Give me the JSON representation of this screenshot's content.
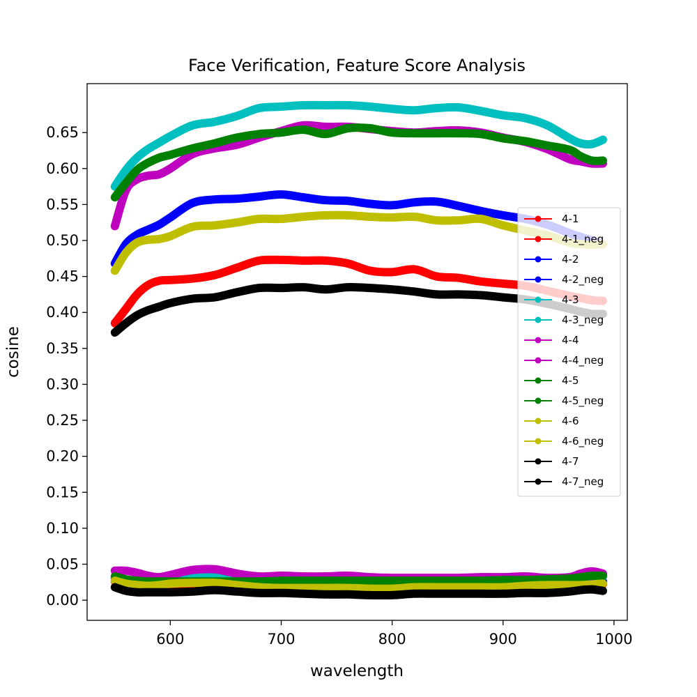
{
  "chart_data": {
    "type": "line",
    "title": "Face Verification, Feature Score Analysis",
    "xlabel": "wavelength",
    "ylabel": "cosine",
    "xlim": [
      525,
      1012
    ],
    "ylim": [
      -0.028,
      0.718
    ],
    "xticks": [
      600,
      700,
      800,
      900,
      1000
    ],
    "xtick_labels": [
      "600",
      "700",
      "800",
      "900",
      "1000"
    ],
    "yticks": [
      0.0,
      0.05,
      0.1,
      0.15,
      0.2,
      0.25,
      0.3,
      0.35,
      0.4,
      0.45,
      0.5,
      0.55,
      0.6,
      0.65
    ],
    "ytick_labels": [
      "0.00",
      "0.05",
      "0.10",
      "0.15",
      "0.20",
      "0.25",
      "0.30",
      "0.35",
      "0.40",
      "0.45",
      "0.50",
      "0.55",
      "0.60",
      "0.65"
    ],
    "grid": false,
    "legend": "center-right",
    "x": [
      550,
      560,
      570,
      580,
      590,
      600,
      620,
      640,
      660,
      680,
      700,
      720,
      740,
      760,
      780,
      800,
      820,
      840,
      860,
      880,
      900,
      920,
      940,
      960,
      970,
      980,
      990
    ],
    "series": [
      {
        "name": "4-1",
        "color": "#ff0000",
        "values": [
          0.385,
          0.405,
          0.425,
          0.438,
          0.444,
          0.445,
          0.447,
          0.452,
          0.462,
          0.472,
          0.473,
          0.472,
          0.472,
          0.468,
          0.458,
          0.456,
          0.46,
          0.45,
          0.448,
          0.443,
          0.44,
          0.437,
          0.43,
          0.423,
          0.42,
          0.417,
          0.416
        ]
      },
      {
        "name": "4-1_neg",
        "color": "#ff0000",
        "values": [
          0.026,
          0.023,
          0.021,
          0.021,
          0.021,
          0.022,
          0.023,
          0.024,
          0.023,
          0.022,
          0.021,
          0.02,
          0.02,
          0.019,
          0.018,
          0.018,
          0.019,
          0.019,
          0.02,
          0.02,
          0.021,
          0.021,
          0.021,
          0.022,
          0.022,
          0.023,
          0.022
        ]
      },
      {
        "name": "4-2",
        "color": "#0000ff",
        "values": [
          0.468,
          0.495,
          0.508,
          0.515,
          0.522,
          0.532,
          0.552,
          0.557,
          0.558,
          0.561,
          0.564,
          0.56,
          0.556,
          0.555,
          0.551,
          0.549,
          0.553,
          0.554,
          0.548,
          0.541,
          0.535,
          0.53,
          0.522,
          0.51,
          0.505,
          0.5,
          0.495
        ]
      },
      {
        "name": "4-2_neg",
        "color": "#0000ff",
        "values": [
          0.03,
          0.027,
          0.025,
          0.024,
          0.024,
          0.025,
          0.027,
          0.028,
          0.027,
          0.026,
          0.025,
          0.025,
          0.025,
          0.025,
          0.024,
          0.024,
          0.025,
          0.025,
          0.025,
          0.025,
          0.025,
          0.026,
          0.026,
          0.026,
          0.027,
          0.027,
          0.026
        ]
      },
      {
        "name": "4-3",
        "color": "#00bfbf",
        "values": [
          0.575,
          0.598,
          0.615,
          0.627,
          0.636,
          0.645,
          0.66,
          0.665,
          0.673,
          0.684,
          0.686,
          0.688,
          0.688,
          0.688,
          0.686,
          0.683,
          0.681,
          0.684,
          0.685,
          0.68,
          0.674,
          0.67,
          0.66,
          0.642,
          0.635,
          0.634,
          0.64
        ]
      },
      {
        "name": "4-3_neg",
        "color": "#00bfbf",
        "values": [
          0.031,
          0.028,
          0.025,
          0.024,
          0.025,
          0.027,
          0.032,
          0.033,
          0.03,
          0.028,
          0.029,
          0.03,
          0.029,
          0.028,
          0.028,
          0.028,
          0.028,
          0.029,
          0.029,
          0.03,
          0.031,
          0.031,
          0.03,
          0.032,
          0.033,
          0.034,
          0.033
        ]
      },
      {
        "name": "4-4",
        "color": "#bf00bf",
        "values": [
          0.52,
          0.57,
          0.585,
          0.59,
          0.592,
          0.6,
          0.62,
          0.628,
          0.633,
          0.643,
          0.652,
          0.66,
          0.658,
          0.658,
          0.655,
          0.652,
          0.65,
          0.652,
          0.653,
          0.65,
          0.643,
          0.637,
          0.627,
          0.613,
          0.61,
          0.607,
          0.607
        ]
      },
      {
        "name": "4-4_neg",
        "color": "#bf00bf",
        "values": [
          0.041,
          0.041,
          0.038,
          0.034,
          0.032,
          0.035,
          0.042,
          0.043,
          0.037,
          0.033,
          0.034,
          0.033,
          0.033,
          0.034,
          0.032,
          0.031,
          0.031,
          0.031,
          0.031,
          0.032,
          0.032,
          0.033,
          0.031,
          0.032,
          0.037,
          0.04,
          0.037
        ]
      },
      {
        "name": "4-5",
        "color": "#008000",
        "values": [
          0.56,
          0.58,
          0.598,
          0.608,
          0.615,
          0.619,
          0.628,
          0.635,
          0.643,
          0.648,
          0.65,
          0.654,
          0.648,
          0.656,
          0.656,
          0.65,
          0.649,
          0.649,
          0.649,
          0.648,
          0.642,
          0.638,
          0.632,
          0.626,
          0.617,
          0.611,
          0.611
        ]
      },
      {
        "name": "4-5_neg",
        "color": "#008000",
        "values": [
          0.033,
          0.029,
          0.027,
          0.026,
          0.026,
          0.026,
          0.026,
          0.026,
          0.026,
          0.026,
          0.027,
          0.027,
          0.027,
          0.027,
          0.027,
          0.027,
          0.027,
          0.027,
          0.027,
          0.027,
          0.028,
          0.028,
          0.029,
          0.03,
          0.032,
          0.034,
          0.034
        ]
      },
      {
        "name": "4-6",
        "color": "#bfbf00",
        "values": [
          0.458,
          0.483,
          0.497,
          0.501,
          0.502,
          0.506,
          0.519,
          0.521,
          0.525,
          0.53,
          0.53,
          0.533,
          0.535,
          0.535,
          0.533,
          0.532,
          0.533,
          0.528,
          0.528,
          0.53,
          0.521,
          0.514,
          0.507,
          0.497,
          0.495,
          0.494,
          0.495
        ]
      },
      {
        "name": "4-6_neg",
        "color": "#bfbf00",
        "values": [
          0.027,
          0.023,
          0.021,
          0.02,
          0.021,
          0.023,
          0.024,
          0.024,
          0.021,
          0.018,
          0.017,
          0.017,
          0.017,
          0.017,
          0.016,
          0.016,
          0.018,
          0.018,
          0.018,
          0.018,
          0.018,
          0.02,
          0.021,
          0.021,
          0.021,
          0.022,
          0.023
        ]
      },
      {
        "name": "4-7",
        "color": "#000000",
        "values": [
          0.372,
          0.385,
          0.396,
          0.403,
          0.408,
          0.413,
          0.419,
          0.421,
          0.428,
          0.434,
          0.434,
          0.435,
          0.432,
          0.435,
          0.434,
          0.432,
          0.429,
          0.425,
          0.425,
          0.424,
          0.421,
          0.418,
          0.412,
          0.405,
          0.401,
          0.398,
          0.398
        ]
      },
      {
        "name": "4-7_neg",
        "color": "#000000",
        "values": [
          0.018,
          0.013,
          0.011,
          0.011,
          0.011,
          0.011,
          0.012,
          0.014,
          0.012,
          0.01,
          0.01,
          0.009,
          0.008,
          0.008,
          0.007,
          0.007,
          0.009,
          0.009,
          0.009,
          0.009,
          0.009,
          0.01,
          0.01,
          0.012,
          0.014,
          0.015,
          0.013
        ]
      }
    ]
  }
}
